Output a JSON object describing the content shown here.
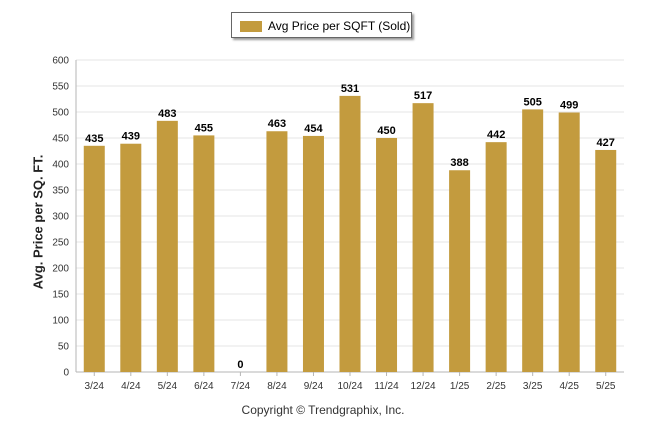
{
  "legend": {
    "label": "Avg Price per SQFT (Sold)"
  },
  "copyright": "Copyright © Trendgraphix, Inc.",
  "chart_data": {
    "type": "bar",
    "categories": [
      "3/24",
      "4/24",
      "5/24",
      "6/24",
      "7/24",
      "8/24",
      "9/24",
      "10/24",
      "11/24",
      "12/24",
      "1/25",
      "2/25",
      "3/25",
      "4/25",
      "5/25"
    ],
    "series": [
      {
        "name": "Avg Price per SQFT (Sold)",
        "values": [
          435,
          439,
          483,
          455,
          0,
          463,
          454,
          531,
          450,
          517,
          388,
          442,
          505,
          499,
          427
        ]
      }
    ],
    "ylabel": "Avg. Price per SQ. FT.",
    "ylim": [
      0,
      600
    ],
    "yticks": [
      0,
      50,
      100,
      150,
      200,
      250,
      300,
      350,
      400,
      450,
      500,
      550,
      600
    ],
    "grid": true,
    "legend_position": "top-center",
    "bar_color": "#C39B3E",
    "data_labels": true
  }
}
